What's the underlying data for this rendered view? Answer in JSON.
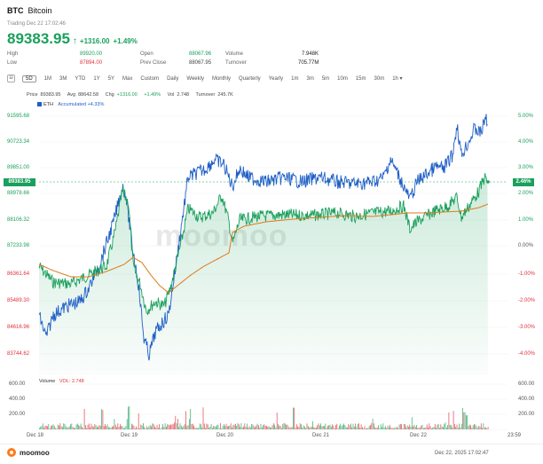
{
  "header": {
    "symbol": "BTC",
    "name": "Bitcoin",
    "status": "Trading Dec 22 17:02:46",
    "price": "89383.95",
    "change": "+1316.00",
    "change_pct": "+1.49%"
  },
  "stats": {
    "high_label": "High",
    "high": "89920.00",
    "low_label": "Low",
    "low": "87894.00",
    "open_label": "Open",
    "open": "88067.96",
    "prev_close_label": "Prev Close",
    "prev_close": "88067.95",
    "volume_label": "Volume",
    "volume": "7.948K",
    "turnover_label": "Turnover",
    "turnover": "705.77M"
  },
  "toolbar": {
    "icon1": "⊟",
    "items": [
      "5D",
      "1M",
      "3M",
      "YTD",
      "1Y",
      "5Y",
      "Max",
      "Custom",
      "Daily",
      "Weekly",
      "Monthly",
      "Quarterly",
      "Yearly",
      "1m",
      "3m",
      "5m",
      "10m",
      "15m",
      "30m",
      "1h ▾"
    ],
    "selected_index": 0
  },
  "info": {
    "price_label": "Price",
    "price": "89383.95",
    "avg_label": "Avg",
    "avg": "88642.58",
    "chg_label": "Chg",
    "chg": "+1316.00",
    "chg_pct": "+1.49%",
    "vol_label": "Vol",
    "vol": "2.748",
    "turnover_label": "Turnover",
    "turnover": "245.7K"
  },
  "legend": {
    "eth_label": "ETH",
    "accum_label": "Accumulated",
    "accum_value": "+4.33%"
  },
  "y_left": [
    "91595.68",
    "90723.34",
    "89851.00",
    "88978.66",
    "88106.32",
    "87233.98",
    "86361.64",
    "85489.30",
    "84616.96",
    "83744.62"
  ],
  "y_right": [
    "5.00%",
    "4.00%",
    "3.00%",
    "2.00%",
    "1.00%",
    "0.00%",
    "-1.00%",
    "-2.00%",
    "-3.00%",
    "-4.00%"
  ],
  "price_tag": "89383.95",
  "pct_tag": "2.46%",
  "volume_panel": {
    "title": "Volume",
    "vol_label": "VOL: 2.748",
    "y_labels": [
      "600.00",
      "400.00",
      "200.00"
    ]
  },
  "x_axis": [
    "Dec 18",
    "Dec 19",
    "Dec 20",
    "Dec 21",
    "Dec 22",
    "23:59"
  ],
  "footer": {
    "brand": "moomoo",
    "timestamp": "Dec 22, 2025 17:02:47"
  },
  "watermark": "moomoo",
  "colors": {
    "up": "#1aa05c",
    "down": "#e0323c",
    "eth": "#1f5ec7",
    "avg": "#e07a1a"
  }
}
